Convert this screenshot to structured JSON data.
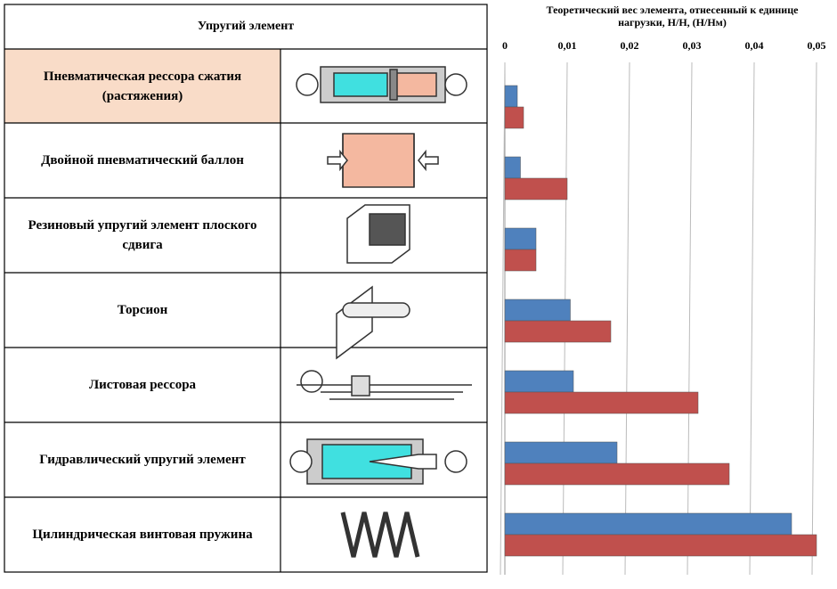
{
  "table": {
    "header": "Упругий элемент"
  },
  "chart_data": {
    "type": "bar",
    "orientation": "horizontal",
    "title": "Теоретический вес элемента, отнесенный к единице нагрузки, Н/Н, (Н/Нм)",
    "categories": [
      "Пневматическая рессора сжатия (растяжения)",
      "Двойной пневматический баллон",
      "Резиновый упругий элемент плоского сдвига",
      "Торсион",
      "Листовая рессора",
      "Гидравлический упругий элемент",
      "Цилиндрическая винтовая пружина"
    ],
    "series": [
      {
        "color": "#4f81bd",
        "values": [
          0.002,
          0.0025,
          0.005,
          0.0105,
          0.011,
          0.018,
          0.046
        ]
      },
      {
        "color": "#c0504d",
        "values": [
          0.003,
          0.01,
          0.005,
          0.017,
          0.031,
          0.036,
          0.05
        ]
      }
    ],
    "xlim": [
      0,
      0.05
    ],
    "xticks": [
      0,
      {
        "value": 0.01,
        "label": "0,01"
      },
      {
        "value": 0.02,
        "label": "0,02"
      },
      {
        "value": 0.03,
        "label": "0,03"
      },
      {
        "value": 0.04,
        "label": "0,04"
      },
      {
        "value": 0.05,
        "label": "0,05"
      }
    ],
    "grid": true
  }
}
